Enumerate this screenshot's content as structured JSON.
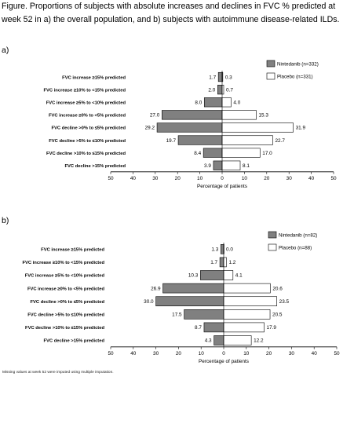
{
  "caption": "Figure. Proportions of subjects with absolute increases and declines in FVC % predicted at week 52 in a) the overall population, and b) subjects with autoimmune disease-related ILDs.",
  "footnote": "Missing values at week 52 were imputed using multiple imputation.",
  "colors": {
    "nintedanib": "#808080",
    "placebo": "#ffffff",
    "stroke": "#000000"
  },
  "chart_data": [
    {
      "type": "bar",
      "orientation": "horizontal-butterfly",
      "panel_label": "a)",
      "categories": [
        "FVC increase ≥15% predicted",
        "FVC increase ≥10% to <15% predicted",
        "FVC increase ≥5% to <10% predicted",
        "FVC increase ≥0% to <5% predicted",
        "FVC decline >0% to ≤5% predicted",
        "FVC decline >5% to ≤10% predicted",
        "FVC decline >10% to ≤15% predicted",
        "FVC decline >15% predicted"
      ],
      "series": [
        {
          "name": "Nintedanib (n=332)",
          "side": "left",
          "values": [
            1.7,
            2.0,
            8.0,
            27.0,
            29.2,
            19.7,
            8.4,
            3.9
          ],
          "labels": [
            "1.7",
            "2.0",
            "8.0",
            "27.0",
            "29.2",
            "19.7",
            "8.4",
            "3.9"
          ]
        },
        {
          "name": "Placebo (n=331)",
          "side": "right",
          "values": [
            0.3,
            0.7,
            4.0,
            15.3,
            31.9,
            22.7,
            17.0,
            8.1
          ],
          "labels": [
            "0.3",
            "0.7",
            "4.0",
            "15.3",
            "31.9",
            "22.7",
            "17.0",
            "8.1"
          ]
        }
      ],
      "xlabel": "Percentage of patients",
      "xlim": [
        -50,
        50
      ],
      "xticks": [
        "50",
        "40",
        "30",
        "20",
        "10",
        "0",
        "10",
        "20",
        "30",
        "40",
        "50"
      ],
      "grid": false,
      "legend_position": "top-right"
    },
    {
      "type": "bar",
      "orientation": "horizontal-butterfly",
      "panel_label": "b)",
      "categories": [
        "FVC increase ≥15% predicted",
        "FVC increase ≥10% to <15% predicted",
        "FVC increase ≥5% to <10% predicted",
        "FVC increase ≥0% to <5% predicted",
        "FVC decline >0% to ≤5% predicted",
        "FVC decline >5% to ≤10% predicted",
        "FVC decline >10% to ≤15% predicted",
        "FVC decline >15% predicted"
      ],
      "series": [
        {
          "name": "Nintedanib (n=82)",
          "side": "left",
          "values": [
            1.3,
            1.7,
            10.3,
            26.9,
            30.0,
            17.5,
            8.7,
            4.3
          ],
          "labels": [
            "1.3",
            "1.7",
            "10.3",
            "26.9",
            "30.0",
            "17.5",
            "8.7",
            "4.3"
          ]
        },
        {
          "name": "Placebo (n=88)",
          "side": "right",
          "values": [
            0.0,
            1.2,
            4.1,
            20.6,
            23.5,
            20.5,
            17.9,
            12.2
          ],
          "labels": [
            "0.0",
            "1.2",
            "4.1",
            "20.6",
            "23.5",
            "20.5",
            "17.9",
            "12.2"
          ]
        }
      ],
      "xlabel": "Percentage of patients",
      "xlim": [
        -50,
        50
      ],
      "xticks": [
        "50",
        "40",
        "30",
        "20",
        "10",
        "0",
        "10",
        "20",
        "30",
        "40",
        "50"
      ],
      "grid": false,
      "legend_position": "top-right"
    }
  ]
}
